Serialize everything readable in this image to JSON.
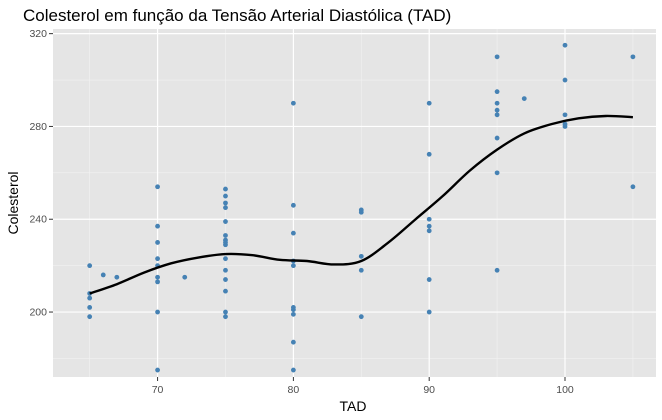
{
  "chart_data": {
    "type": "scatter",
    "title": "Colesterol em função da Tensão Arterial Diastólica (TAD)",
    "xlabel": "TAD",
    "ylabel": "Colesterol",
    "xlim": [
      62.3,
      106.7
    ],
    "ylim": [
      172,
      322
    ],
    "x_ticks": [
      70,
      80,
      90,
      100
    ],
    "y_ticks": [
      200,
      240,
      280,
      320
    ],
    "x_tick_labels": [
      "70",
      "80",
      "90",
      "100"
    ],
    "y_tick_labels": [
      "200",
      "240",
      "280",
      "320"
    ],
    "grid": true,
    "background": "#e5e5e5",
    "point_color": "#4682b4",
    "line_color": "#000000",
    "points": [
      [
        65,
        220
      ],
      [
        65,
        208
      ],
      [
        65,
        206
      ],
      [
        65,
        202
      ],
      [
        65,
        198
      ],
      [
        66,
        216
      ],
      [
        67,
        215
      ],
      [
        70,
        254
      ],
      [
        70,
        237
      ],
      [
        70,
        230
      ],
      [
        70,
        223
      ],
      [
        70,
        220
      ],
      [
        70,
        215
      ],
      [
        70,
        213
      ],
      [
        70,
        200
      ],
      [
        70,
        175
      ],
      [
        72,
        215
      ],
      [
        75,
        253
      ],
      [
        75,
        250
      ],
      [
        75,
        247
      ],
      [
        75,
        245
      ],
      [
        75,
        239
      ],
      [
        75,
        233
      ],
      [
        75,
        231
      ],
      [
        75,
        230
      ],
      [
        75,
        229
      ],
      [
        75,
        223
      ],
      [
        75,
        218
      ],
      [
        75,
        214
      ],
      [
        75,
        209
      ],
      [
        75,
        200
      ],
      [
        75,
        198
      ],
      [
        80,
        290
      ],
      [
        80,
        246
      ],
      [
        80,
        234
      ],
      [
        80,
        222
      ],
      [
        80,
        220
      ],
      [
        80,
        202
      ],
      [
        80,
        201
      ],
      [
        80,
        199
      ],
      [
        80,
        187
      ],
      [
        80,
        175
      ],
      [
        85,
        244
      ],
      [
        85,
        243
      ],
      [
        85,
        224
      ],
      [
        85,
        218
      ],
      [
        85,
        198
      ],
      [
        90,
        290
      ],
      [
        90,
        268
      ],
      [
        90,
        240
      ],
      [
        90,
        237
      ],
      [
        90,
        235
      ],
      [
        90,
        214
      ],
      [
        90,
        200
      ],
      [
        95,
        310
      ],
      [
        95,
        295
      ],
      [
        95,
        290
      ],
      [
        95,
        287
      ],
      [
        95,
        285
      ],
      [
        95,
        275
      ],
      [
        95,
        260
      ],
      [
        95,
        218
      ],
      [
        97,
        292
      ],
      [
        100,
        315
      ],
      [
        100,
        300
      ],
      [
        100,
        285
      ],
      [
        100,
        281
      ],
      [
        100,
        280
      ],
      [
        105,
        310
      ],
      [
        105,
        254
      ]
    ],
    "smooth_line": [
      [
        65,
        208
      ],
      [
        67,
        212
      ],
      [
        69,
        217
      ],
      [
        71,
        221
      ],
      [
        73,
        223.5
      ],
      [
        75,
        225
      ],
      [
        77,
        224.5
      ],
      [
        79,
        222.5
      ],
      [
        81,
        222
      ],
      [
        83,
        220.5
      ],
      [
        85,
        222
      ],
      [
        87,
        230
      ],
      [
        89,
        240
      ],
      [
        91,
        250
      ],
      [
        93,
        261
      ],
      [
        95,
        270
      ],
      [
        97,
        277
      ],
      [
        99,
        281
      ],
      [
        101,
        283.5
      ],
      [
        103,
        284.5
      ],
      [
        105,
        284
      ]
    ]
  }
}
